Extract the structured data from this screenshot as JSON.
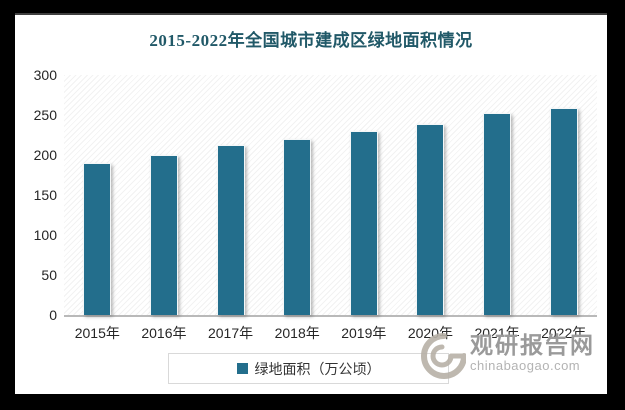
{
  "page": {
    "background_color": "#000000",
    "card_color": "#ffffff"
  },
  "title": "2015-2022年全国城市建成区绿地面积情况",
  "title_color": "#215968",
  "chart_data": {
    "type": "bar",
    "title": "2015-2022年全国城市建成区绿地面积情况",
    "categories": [
      "2015年",
      "2016年",
      "2017年",
      "2018年",
      "2019年",
      "2020年",
      "2021年",
      "2022年"
    ],
    "series": [
      {
        "name": "绿地面积（万公顷）",
        "values": [
          190,
          200,
          212,
          220,
          230,
          239,
          252,
          259
        ]
      }
    ],
    "xlabel": "",
    "ylabel": "",
    "ylim": [
      0,
      300
    ],
    "yticks": [
      0,
      50,
      100,
      150,
      200,
      250,
      300
    ],
    "grid": false,
    "legend_position": "bottom",
    "bar_color": "#236e8c",
    "plot_background": "light-diagonal-hatch"
  },
  "legend": {
    "label": "绿地面积（万公顷）",
    "marker_color": "#236e8c"
  },
  "watermark": {
    "name": "观研报告网",
    "url": "chinabaogao.com"
  }
}
